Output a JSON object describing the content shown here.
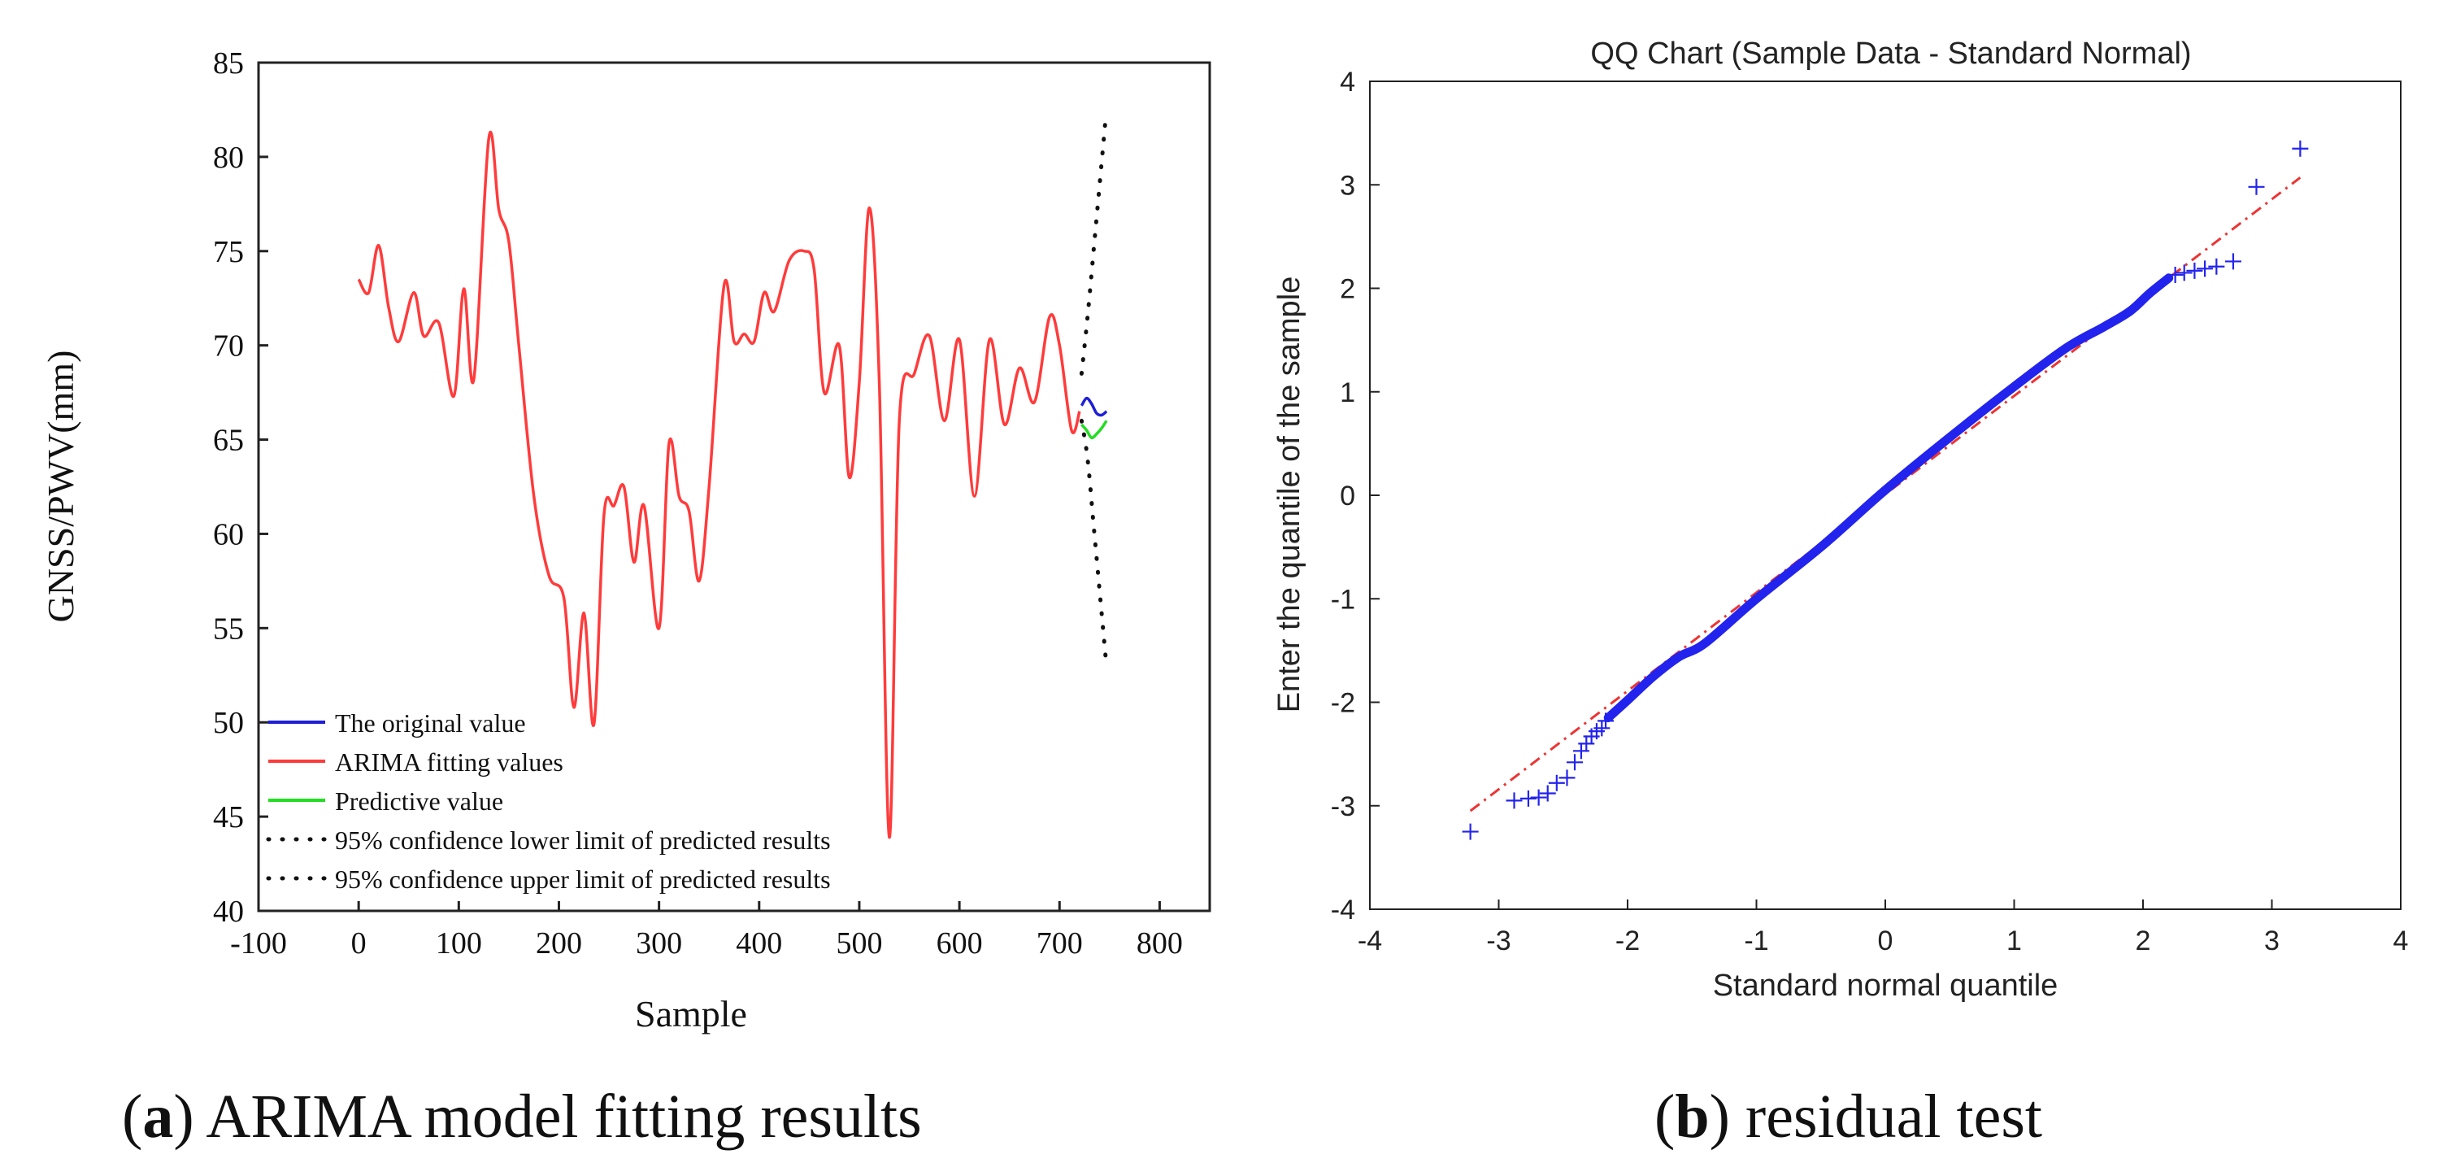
{
  "figure": {
    "caption_a": {
      "letter": "a",
      "text": " ARIMA model fitting results"
    },
    "caption_b": {
      "letter": "b",
      "text": " residual test"
    }
  },
  "chart_data": [
    {
      "type": "line",
      "title": "",
      "xlabel": "Sample",
      "ylabel": "GNSS/PWV(mm)",
      "xlim": [
        -100,
        850
      ],
      "ylim": [
        40,
        85
      ],
      "x_ticks": [
        -100,
        0,
        100,
        200,
        300,
        400,
        500,
        600,
        700,
        800
      ],
      "y_ticks": [
        40,
        45,
        50,
        55,
        60,
        65,
        70,
        75,
        80,
        85
      ],
      "legend_position": "lower-left",
      "colors": {
        "original": "#1f1fd6",
        "fitting": "#ff3b3b",
        "predictive": "#22dd22",
        "confidence": "#111111"
      },
      "series": [
        {
          "name": "The original value",
          "style": "solid",
          "x": [
            722,
            727,
            732,
            737,
            742,
            747
          ],
          "values": [
            66.8,
            67.2,
            66.9,
            66.4,
            66.3,
            66.5
          ]
        },
        {
          "name": "ARIMA fitting values",
          "style": "solid",
          "x": [
            0,
            10,
            20,
            30,
            40,
            55,
            65,
            80,
            95,
            105,
            115,
            130,
            140,
            150,
            160,
            175,
            190,
            205,
            215,
            225,
            235,
            245,
            255,
            265,
            275,
            285,
            300,
            310,
            320,
            330,
            340,
            350,
            365,
            375,
            385,
            395,
            405,
            415,
            430,
            445,
            455,
            465,
            480,
            490,
            500,
            510,
            520,
            530,
            540,
            555,
            570,
            585,
            600,
            615,
            630,
            645,
            660,
            675,
            690,
            700,
            712,
            720
          ],
          "values": [
            73.5,
            72.8,
            75.3,
            72.0,
            70.2,
            72.8,
            70.5,
            71.2,
            67.3,
            73.0,
            68.2,
            81.0,
            77.2,
            75.5,
            70.0,
            62.0,
            57.8,
            56.6,
            50.8,
            55.8,
            49.9,
            61.0,
            61.5,
            62.5,
            58.5,
            61.5,
            55.0,
            64.8,
            62.0,
            61.2,
            57.5,
            62.5,
            73.2,
            70.2,
            70.6,
            70.2,
            72.8,
            71.8,
            74.5,
            75.0,
            74.0,
            67.5,
            70.0,
            63.0,
            68.0,
            77.3,
            68.0,
            43.9,
            66.0,
            68.5,
            70.5,
            66.0,
            70.3,
            62.0,
            70.3,
            65.8,
            68.8,
            67.0,
            71.5,
            70.0,
            65.5,
            66.5
          ]
        },
        {
          "name": "Predictive value",
          "style": "solid",
          "x": [
            722,
            727,
            732,
            737,
            742,
            747
          ],
          "values": [
            65.8,
            65.5,
            65.1,
            65.3,
            65.6,
            66.0
          ]
        },
        {
          "name": "95% confidence lower limit of predicted results",
          "style": "dotted",
          "x": [
            722,
            728,
            734,
            740,
            746
          ],
          "values": [
            66.0,
            64.0,
            60.5,
            57.0,
            53.5
          ]
        },
        {
          "name": "95% confidence upper limit of predicted results",
          "style": "dotted",
          "x": [
            722,
            728,
            734,
            740,
            746
          ],
          "values": [
            68.5,
            71.5,
            75.0,
            78.5,
            82.0
          ]
        }
      ]
    },
    {
      "type": "scatter",
      "title": "QQ Chart (Sample Data - Standard Normal)",
      "xlabel": "Standard normal quantile",
      "ylabel": "Enter the quantile of the sample",
      "xlim": [
        -4,
        4
      ],
      "ylim": [
        -4,
        4
      ],
      "x_ticks": [
        -4,
        -3,
        -2,
        -1,
        0,
        1,
        2,
        3,
        4
      ],
      "y_ticks": [
        -4,
        -3,
        -2,
        -1,
        0,
        1,
        2,
        3,
        4
      ],
      "colors": {
        "points": "#2323ee",
        "reference": "#ee3333"
      },
      "reference_line": {
        "x": [
          -3.22,
          3.22
        ],
        "y": [
          -3.05,
          3.07
        ]
      },
      "outlier_points": {
        "x": [
          -3.22,
          -2.88,
          -2.77,
          -2.69,
          -2.62,
          -2.55,
          -2.47,
          -2.41,
          -2.36,
          -2.32,
          -2.28,
          -2.24,
          -2.2,
          -2.17,
          2.25,
          2.32,
          2.4,
          2.48,
          2.57,
          2.7,
          2.88,
          3.22
        ],
        "y": [
          -3.25,
          -2.95,
          -2.93,
          -2.92,
          -2.88,
          -2.78,
          -2.73,
          -2.58,
          -2.47,
          -2.4,
          -2.33,
          -2.28,
          -2.25,
          -2.18,
          2.13,
          2.15,
          2.17,
          2.19,
          2.21,
          2.26,
          2.98,
          3.35
        ]
      },
      "bulk_curve": {
        "x": [
          -2.15,
          -2.0,
          -1.8,
          -1.6,
          -1.4,
          -1.0,
          -0.5,
          0.0,
          0.5,
          1.0,
          1.4,
          1.7,
          1.9,
          2.05,
          2.2
        ],
        "y": [
          -2.15,
          -1.98,
          -1.75,
          -1.56,
          -1.43,
          -1.0,
          -0.5,
          0.05,
          0.56,
          1.05,
          1.42,
          1.63,
          1.78,
          1.95,
          2.1
        ]
      }
    }
  ]
}
